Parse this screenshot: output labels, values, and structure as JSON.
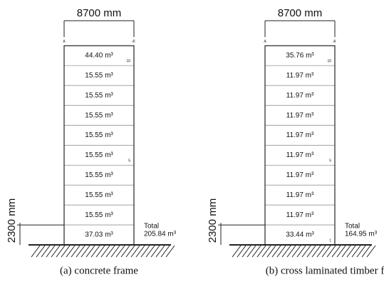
{
  "panels": [
    {
      "caption": "(a)  concrete  frame",
      "width_label": "8700 mm",
      "height_label": "2300 mm",
      "axis_labels": [
        "A",
        "A'"
      ],
      "floors": [
        {
          "volume": "44.40 m³",
          "number": "10"
        },
        {
          "volume": "15.55 m³"
        },
        {
          "volume": "15.55 m³"
        },
        {
          "volume": "15.55 m³"
        },
        {
          "volume": "15.55 m³"
        },
        {
          "volume": "15.55 m³",
          "number": "5"
        },
        {
          "volume": "15.55 m³"
        },
        {
          "volume": "15.55 m³"
        },
        {
          "volume": "15.55 m³"
        },
        {
          "volume": "37.03 m³"
        }
      ],
      "total_label": "Total",
      "total_value": "205.84 m³"
    },
    {
      "caption": "(b)  cross  laminated  timber  frame",
      "width_label": "8700 mm",
      "height_label": "2300 mm",
      "axis_labels": [
        "A",
        "A'"
      ],
      "floors": [
        {
          "volume": "35.76 m³",
          "number": "10"
        },
        {
          "volume": "11.97 m³"
        },
        {
          "volume": "11.97 m³"
        },
        {
          "volume": "11.97 m³"
        },
        {
          "volume": "11.97 m³"
        },
        {
          "volume": "11.97 m³",
          "number": "5"
        },
        {
          "volume": "11.97 m³"
        },
        {
          "volume": "11.97 m³"
        },
        {
          "volume": "11.97 m³"
        },
        {
          "volume": "33.44 m³",
          "number": "1"
        }
      ],
      "total_label": "Total",
      "total_value": "164.95 m³"
    }
  ]
}
